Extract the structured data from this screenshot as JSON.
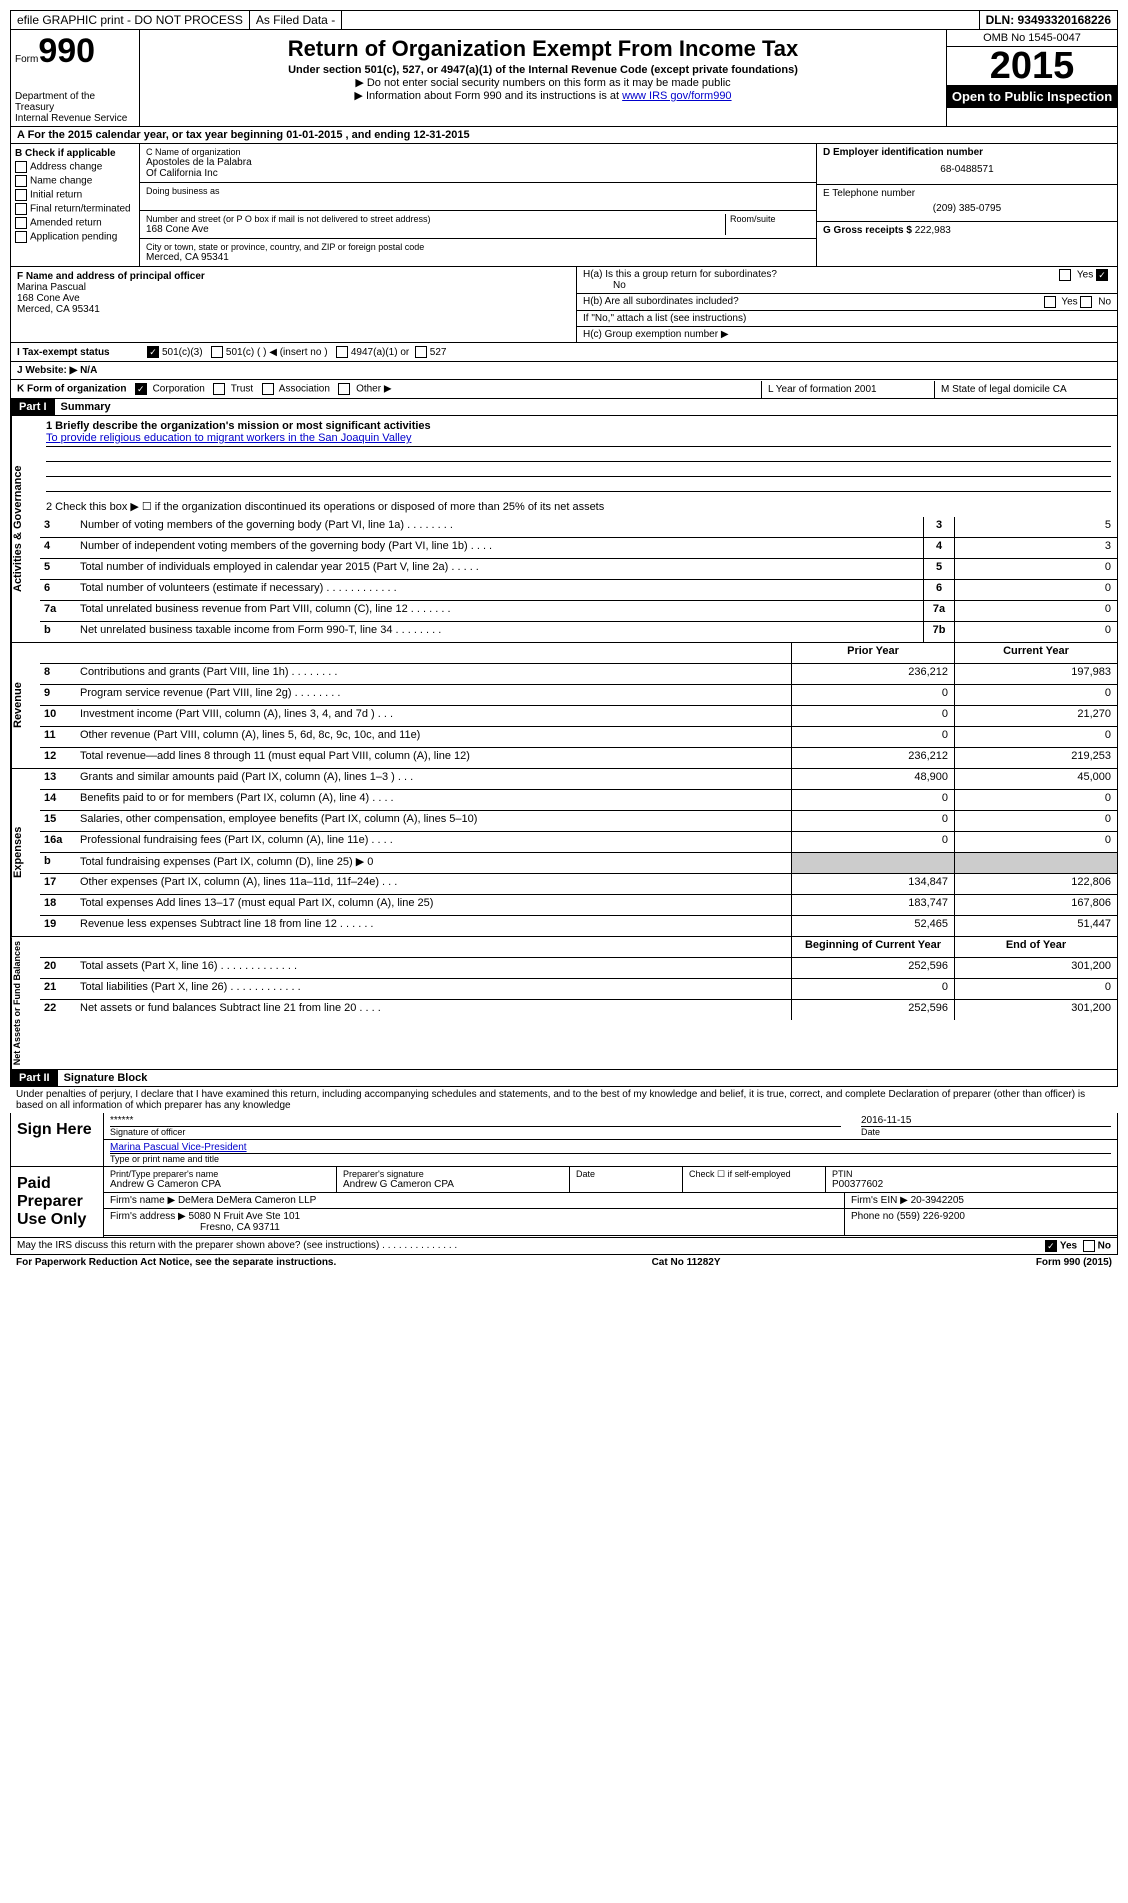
{
  "topbar": {
    "efile": "efile GRAPHIC print - DO NOT PROCESS",
    "filed": "As Filed Data -",
    "dln": "DLN: 93493320168226"
  },
  "header": {
    "form_label": "Form",
    "form_no": "990",
    "dept": "Department of the Treasury",
    "irs": "Internal Revenue Service",
    "title": "Return of Organization Exempt From Income Tax",
    "sub1": "Under section 501(c), 527, or 4947(a)(1) of the Internal Revenue Code (except private foundations)",
    "sub2": "▶ Do not enter social security numbers on this form as it may be made public",
    "sub3_pre": "▶ Information about Form 990 and its instructions is at ",
    "sub3_link": "www IRS gov/form990",
    "omb": "OMB No 1545-0047",
    "year": "2015",
    "open": "Open to Public Inspection"
  },
  "rowA": "A  For the 2015 calendar year, or tax year beginning 01-01-2015   , and ending 12-31-2015",
  "colB": {
    "title": "B Check if applicable",
    "c1": "Address change",
    "c2": "Name change",
    "c3": "Initial return",
    "c4": "Final return/terminated",
    "c5": "Amended return",
    "c6": "Application pending"
  },
  "colC": {
    "name_label": "C Name of organization",
    "name1": "Apostoles de la Palabra",
    "name2": "Of California Inc",
    "dba": "Doing business as",
    "street_label": "Number and street (or P O box if mail is not delivered to street address)",
    "room": "Room/suite",
    "street": "168 Cone Ave",
    "city_label": "City or town, state or province, country, and ZIP or foreign postal code",
    "city": "Merced, CA 95341"
  },
  "colD": {
    "d_label": "D Employer identification number",
    "d_val": "68-0488571",
    "e_label": "E Telephone number",
    "e_val": "(209) 385-0795",
    "g_label": "G Gross receipts $",
    "g_val": "222,983"
  },
  "rowF": {
    "f_label": "F  Name and address of principal officer",
    "f_name": "Marina Pascual",
    "f_street": "168 Cone Ave",
    "f_city": "Merced, CA  95341",
    "ha": "H(a)  Is this a group return for subordinates?",
    "ha_ans": "No",
    "hb": "H(b)  Are all subordinates included?",
    "hb_note": "If \"No,\" attach a list  (see instructions)",
    "hc": "H(c)  Group exemption number ▶"
  },
  "rowI": {
    "label": "I   Tax-exempt status",
    "o1": "501(c)(3)",
    "o2": "501(c) (  ) ◀ (insert no )",
    "o3": "4947(a)(1) or",
    "o4": "527"
  },
  "rowJ": "J   Website: ▶  N/A",
  "rowK": {
    "label": "K Form of organization",
    "o1": "Corporation",
    "o2": "Trust",
    "o3": "Association",
    "o4": "Other ▶",
    "L": "L Year of formation  2001",
    "M": "M State of legal domicile  CA"
  },
  "part1": {
    "header": "Part I",
    "title": "Summary",
    "l1": "1 Briefly describe the organization's mission or most significant activities",
    "l1_text": "To provide religious education to migrant workers in the San Joaquin Valley",
    "l2": "2 Check this box ▶ ☐ if the organization discontinued its operations or disposed of more than 25% of its net assets",
    "rows_gov": [
      {
        "n": "3",
        "d": "Number of voting members of the governing body (Part VI, line 1a)  .   .   .   .   .   .   .   .",
        "sm": "3",
        "v": "5"
      },
      {
        "n": "4",
        "d": "Number of independent voting members of the governing body (Part VI, line 1b)   .   .   .   .",
        "sm": "4",
        "v": "3"
      },
      {
        "n": "5",
        "d": "Total number of individuals employed in calendar year 2015 (Part V, line 2a)    .   .   .   .   .",
        "sm": "5",
        "v": "0"
      },
      {
        "n": "6",
        "d": "Total number of volunteers (estimate if necessary)   .   .   .   .   .   .   .   .   .   .   .   .",
        "sm": "6",
        "v": "0"
      },
      {
        "n": "7a",
        "d": "Total unrelated business revenue from Part VIII, column (C), line 12    .   .   .   .   .   .   .",
        "sm": "7a",
        "v": "0"
      },
      {
        "n": "b",
        "d": "Net unrelated business taxable income from Form 990-T, line 34    .   .   .   .   .   .   .   .",
        "sm": "7b",
        "v": "0"
      }
    ],
    "prior_header": "Prior Year",
    "current_header": "Current Year",
    "rows_rev": [
      {
        "n": "8",
        "d": "Contributions and grants (Part VIII, line 1h)   .   .   .   .   .   .   .   .",
        "py": "236,212",
        "cy": "197,983"
      },
      {
        "n": "9",
        "d": "Program service revenue (Part VIII, line 2g)    .   .   .   .   .   .   .   .",
        "py": "0",
        "cy": "0"
      },
      {
        "n": "10",
        "d": "Investment income (Part VIII, column (A), lines 3, 4, and 7d )    .   .   .",
        "py": "0",
        "cy": "21,270"
      },
      {
        "n": "11",
        "d": "Other revenue (Part VIII, column (A), lines 5, 6d, 8c, 9c, 10c, and 11e)",
        "py": "0",
        "cy": "0"
      },
      {
        "n": "12",
        "d": "Total revenue—add lines 8 through 11 (must equal Part VIII, column (A), line 12)",
        "py": "236,212",
        "cy": "219,253"
      }
    ],
    "rows_exp": [
      {
        "n": "13",
        "d": "Grants and similar amounts paid (Part IX, column (A), lines 1–3 )    .   .   .",
        "py": "48,900",
        "cy": "45,000"
      },
      {
        "n": "14",
        "d": "Benefits paid to or for members (Part IX, column (A), line 4)    .   .   .   .",
        "py": "0",
        "cy": "0"
      },
      {
        "n": "15",
        "d": "Salaries, other compensation, employee benefits (Part IX, column (A), lines 5–10)",
        "py": "0",
        "cy": "0"
      },
      {
        "n": "16a",
        "d": "Professional fundraising fees (Part IX, column (A), line 11e)    .   .   .   .",
        "py": "0",
        "cy": "0"
      },
      {
        "n": "b",
        "d": "Total fundraising expenses (Part IX, column (D), line 25) ▶ 0",
        "py": "",
        "cy": ""
      },
      {
        "n": "17",
        "d": "Other expenses (Part IX, column (A), lines 11a–11d, 11f–24e)   .   .   .",
        "py": "134,847",
        "cy": "122,806"
      },
      {
        "n": "18",
        "d": "Total expenses Add lines 13–17 (must equal Part IX, column (A), line 25)",
        "py": "183,747",
        "cy": "167,806"
      },
      {
        "n": "19",
        "d": "Revenue less expenses Subtract line 18 from line 12    .   .   .   .   .   .",
        "py": "52,465",
        "cy": "51,447"
      }
    ],
    "bcy_header": "Beginning of Current Year",
    "eoy_header": "End of Year",
    "rows_net": [
      {
        "n": "20",
        "d": "Total assets (Part X, line 16)   .   .   .   .   .   .   .   .   .   .   .   .   .",
        "py": "252,596",
        "cy": "301,200"
      },
      {
        "n": "21",
        "d": "Total liabilities (Part X, line 26)    .   .   .   .   .   .   .   .   .   .   .   .",
        "py": "0",
        "cy": "0"
      },
      {
        "n": "22",
        "d": "Net assets or fund balances Subtract line 21 from line 20    .   .   .   .",
        "py": "252,596",
        "cy": "301,200"
      }
    ]
  },
  "part2": {
    "header": "Part II",
    "title": "Signature Block",
    "perjury": "Under penalties of perjury, I declare that I have examined this return, including accompanying schedules and statements, and to the best of my knowledge and belief, it is true, correct, and complete Declaration of preparer (other than officer) is based on all information of which preparer has any knowledge",
    "sign_here": "Sign Here",
    "sig_officer": "Signature of officer",
    "sig_stars": "******",
    "sig_date": "2016-11-15",
    "date_label": "Date",
    "officer_name": "Marina Pascual Vice-President",
    "type_print": "Type or print name and title",
    "paid": "Paid Preparer Use Only",
    "prep_name_label": "Print/Type preparer's name",
    "prep_name": "Andrew G Cameron CPA",
    "prep_sig_label": "Preparer's signature",
    "prep_sig": "Andrew G Cameron CPA",
    "check_self": "Check ☐ if self-employed",
    "ptin_label": "PTIN",
    "ptin": "P00377602",
    "firm_name_label": "Firm's name      ▶",
    "firm_name": "DeMera DeMera Cameron LLP",
    "firm_ein_label": "Firm's EIN ▶",
    "firm_ein": "20-3942205",
    "firm_addr_label": "Firm's address ▶",
    "firm_addr1": "5080 N Fruit Ave Ste 101",
    "firm_addr2": "Fresno, CA  93711",
    "phone_label": "Phone no",
    "phone": "(559) 226-9200",
    "discuss": "May the IRS discuss this return with the preparer shown above? (see instructions)   .   .   .   .   .   .   .   .   .   .   .   .   .   .",
    "yes": "Yes",
    "no": "No"
  },
  "footer": {
    "paperwork": "For Paperwork Reduction Act Notice, see the separate instructions.",
    "cat": "Cat No 11282Y",
    "form": "Form 990 (2015)"
  }
}
